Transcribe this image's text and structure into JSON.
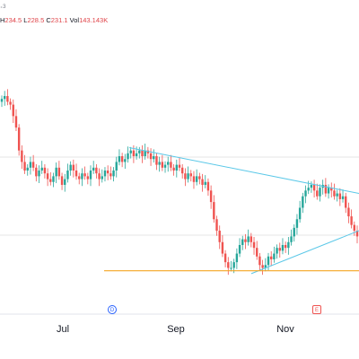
{
  "legend": {
    "sub": "₊3",
    "high_label": "H",
    "high": "234.5",
    "low_label": "L",
    "low": "228.5",
    "close_label": "C",
    "close": "231.1",
    "vol_label": "Vol",
    "vol": "143.143K"
  },
  "colors": {
    "up": "#26a69a",
    "down": "#ef5350",
    "trendline": "#5bc8e8",
    "support": "#f5a623",
    "grid": "#e6e6e6"
  },
  "chart_data": {
    "type": "candlestick",
    "title": "",
    "xlabel": "",
    "ylabel": "",
    "x_ticks": [
      "Jul",
      "Sep",
      "Nov"
    ],
    "event_badges": [
      {
        "letter": "D",
        "near": "Jul"
      },
      {
        "letter": "E",
        "near": "Nov"
      }
    ],
    "y_range": [
      196,
      290
    ],
    "horizontal_support": 208,
    "trendline_upper": [
      {
        "x": 0.36,
        "y": 251
      },
      {
        "x": 1.0,
        "y": 235
      }
    ],
    "trendline_lower": [
      {
        "x": 0.7,
        "y": 207
      },
      {
        "x": 1.0,
        "y": 222
      }
    ],
    "closes": [
      268,
      269,
      267,
      266,
      262,
      258,
      250,
      246,
      243,
      244,
      246,
      244,
      241,
      243,
      244,
      242,
      240,
      239,
      241,
      244,
      241,
      238,
      240,
      243,
      245,
      243,
      241,
      240,
      242,
      241,
      240,
      243,
      244,
      242,
      240,
      241,
      243,
      242,
      241,
      243,
      246,
      248,
      246,
      247,
      249,
      250,
      248,
      249,
      250,
      248,
      250,
      249,
      247,
      248,
      245,
      246,
      244,
      245,
      246,
      244,
      243,
      245,
      244,
      242,
      240,
      242,
      241,
      239,
      241,
      240,
      238,
      239,
      236,
      232,
      226,
      222,
      218,
      214,
      211,
      209,
      209,
      211,
      214,
      217,
      219,
      218,
      220,
      218,
      216,
      213,
      210,
      209,
      210,
      213,
      212,
      214,
      216,
      215,
      217,
      216,
      218,
      220,
      223,
      226,
      230,
      234,
      236,
      237,
      238,
      236,
      234,
      237,
      238,
      235,
      237,
      236,
      234,
      235,
      233,
      234,
      230,
      227,
      224,
      222,
      220
    ]
  }
}
